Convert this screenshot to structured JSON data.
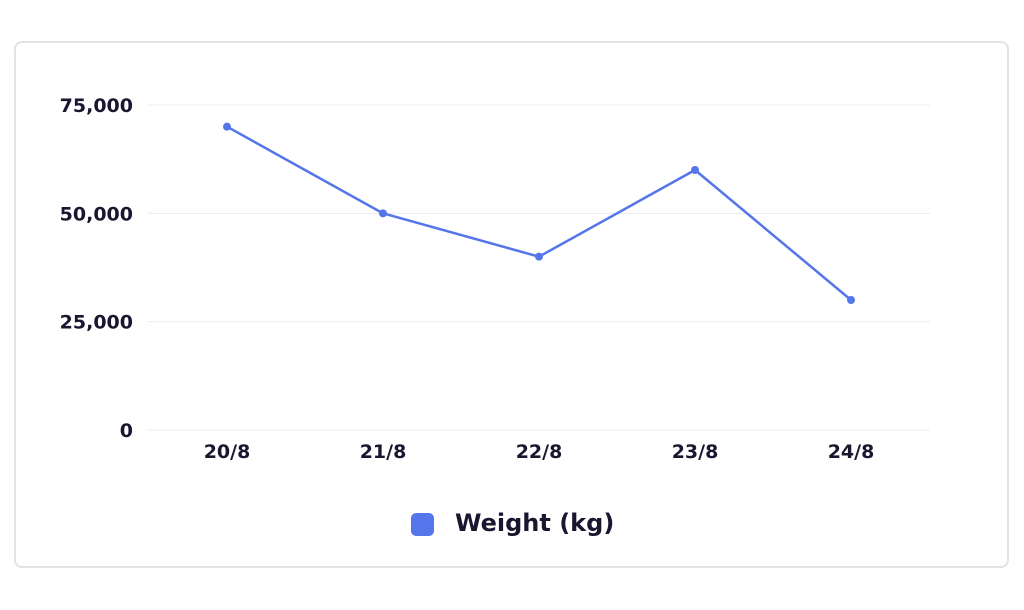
{
  "chart_data": {
    "type": "line",
    "categories": [
      "20/8",
      "21/8",
      "22/8",
      "23/8",
      "24/8"
    ],
    "series": [
      {
        "name": "Weight (kg)",
        "values": [
          70000,
          50000,
          40000,
          60000,
          30000
        ]
      }
    ],
    "yticks": [
      "0",
      "25,000",
      "50,000",
      "75,000"
    ],
    "ytick_values": [
      0,
      25000,
      50000,
      75000
    ],
    "ylim": [
      0,
      75000
    ],
    "grid": true,
    "legend_position": "bottom",
    "colors": {
      "series": "#5575ea",
      "grid": "#ececec",
      "text": "#1b1530",
      "border": "#e3e3e6"
    }
  }
}
